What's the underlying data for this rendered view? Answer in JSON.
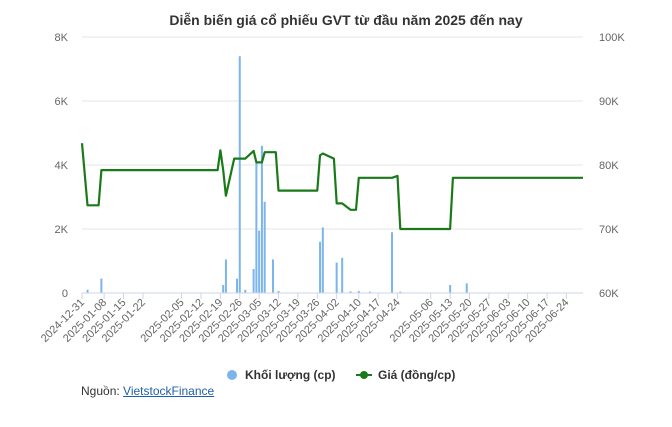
{
  "chart_data": {
    "type": "bar+line",
    "title": "Diễn biến giá cổ phiếu GVT từ đầu năm 2025 đến nay",
    "x_ticks": [
      "2024-12-31",
      "2025-01-08",
      "2025-01-15",
      "2025-01-22",
      "2025-02-05",
      "2025-02-12",
      "2025-02-19",
      "2025-02-26",
      "2025-03-05",
      "2025-03-12",
      "2025-03-19",
      "2025-03-26",
      "2025-04-02",
      "2025-04-10",
      "2025-04-17",
      "2025-04-24",
      "2025-05-06",
      "2025-05-13",
      "2025-05-20",
      "2025-05-27",
      "2025-06-03",
      "2025-06-10",
      "2025-06-17",
      "2025-06-24"
    ],
    "y_left": {
      "ticks": [
        "0",
        "2K",
        "4K",
        "6K",
        "8K"
      ],
      "range": [
        0,
        8000
      ]
    },
    "y_right": {
      "ticks": [
        "60K",
        "70K",
        "80K",
        "90K",
        "100K"
      ],
      "range": [
        60000,
        100000
      ]
    },
    "volume_series": {
      "name": "Khối lượng (cp)",
      "color": "#7cb5ec",
      "points": [
        [
          "2025-01-02",
          100
        ],
        [
          "2025-01-07",
          450
        ],
        [
          "2025-02-20",
          250
        ],
        [
          "2025-02-21",
          1050
        ],
        [
          "2025-02-25",
          450
        ],
        [
          "2025-02-26",
          7400
        ],
        [
          "2025-02-28",
          100
        ],
        [
          "2025-03-03",
          750
        ],
        [
          "2025-03-04",
          4100
        ],
        [
          "2025-03-05",
          1950
        ],
        [
          "2025-03-06",
          4600
        ],
        [
          "2025-03-07",
          2850
        ],
        [
          "2025-03-10",
          1050
        ],
        [
          "2025-03-12",
          60
        ],
        [
          "2025-03-27",
          1600
        ],
        [
          "2025-03-28",
          2050
        ],
        [
          "2025-04-02",
          950
        ],
        [
          "2025-04-04",
          1100
        ],
        [
          "2025-04-07",
          50
        ],
        [
          "2025-04-10",
          60
        ],
        [
          "2025-04-14",
          40
        ],
        [
          "2025-04-22",
          1900
        ],
        [
          "2025-04-25",
          40
        ],
        [
          "2025-05-13",
          250
        ],
        [
          "2025-05-19",
          300
        ]
      ]
    },
    "price_series": {
      "name": "Giá (đồng/cp)",
      "color": "#1a7a1a",
      "points": [
        [
          "2024-12-31",
          83400
        ],
        [
          "2025-01-02",
          73700
        ],
        [
          "2025-01-06",
          73700
        ],
        [
          "2025-01-07",
          79200
        ],
        [
          "2025-02-18",
          79200
        ],
        [
          "2025-02-19",
          82300
        ],
        [
          "2025-02-20",
          79200
        ],
        [
          "2025-02-21",
          75200
        ],
        [
          "2025-02-24",
          81000
        ],
        [
          "2025-02-28",
          81000
        ],
        [
          "2025-03-03",
          82200
        ],
        [
          "2025-03-04",
          80400
        ],
        [
          "2025-03-06",
          80400
        ],
        [
          "2025-03-07",
          82000
        ],
        [
          "2025-03-11",
          82000
        ],
        [
          "2025-03-12",
          76000
        ],
        [
          "2025-03-26",
          76000
        ],
        [
          "2025-03-27",
          81500
        ],
        [
          "2025-03-28",
          81800
        ],
        [
          "2025-04-01",
          81000
        ],
        [
          "2025-04-02",
          74000
        ],
        [
          "2025-04-04",
          74000
        ],
        [
          "2025-04-07",
          73000
        ],
        [
          "2025-04-09",
          73000
        ],
        [
          "2025-04-10",
          78000
        ],
        [
          "2025-04-22",
          78000
        ],
        [
          "2025-04-24",
          78300
        ],
        [
          "2025-04-25",
          70000
        ],
        [
          "2025-05-13",
          70000
        ],
        [
          "2025-05-14",
          78000
        ],
        [
          "2025-06-30",
          78000
        ]
      ]
    },
    "legend": [
      {
        "label": "Khối lượng (cp)",
        "color": "#7cb5ec",
        "shape": "circle"
      },
      {
        "label": "Giá (đồng/cp)",
        "color": "#1a7a1a",
        "shape": "line"
      }
    ],
    "legend_position": "bottom-center",
    "grid": "horizontal",
    "x_range": [
      "2024-12-31",
      "2025-06-30"
    ]
  },
  "source": {
    "label": "Nguồn:",
    "link_text": "VietstockFinance"
  }
}
